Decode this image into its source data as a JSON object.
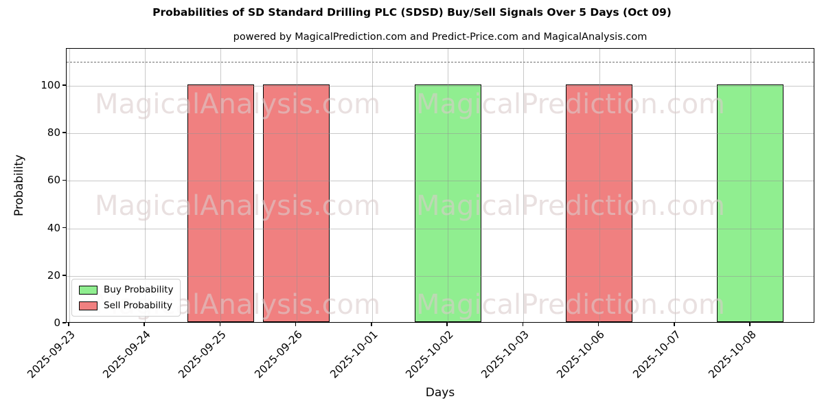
{
  "title": "Probabilities of SD Standard Drilling PLC (SDSD) Buy/Sell Signals Over 5 Days (Oct 09)",
  "subtitle": "powered by MagicalPrediction.com and Predict-Price.com and MagicalAnalysis.com",
  "watermark": {
    "left_text": "MagicalAnalysis.com",
    "right_text": "MagicalPrediction.com"
  },
  "legend": {
    "items": [
      {
        "label": "Buy Probability",
        "color": "#90ee90"
      },
      {
        "label": "Sell Probability",
        "color": "#f08080"
      }
    ]
  },
  "chart_data": {
    "type": "bar",
    "title": "Probabilities of SD Standard Drilling PLC (SDSD) Buy/Sell Signals Over 5 Days (Oct 09)",
    "xlabel": "Days",
    "ylabel": "Probability",
    "categories": [
      "2025-09-23",
      "2025-09-24",
      "2025-09-25",
      "2025-09-26",
      "2025-10-01",
      "2025-10-02",
      "2025-10-03",
      "2025-10-06",
      "2025-10-07",
      "2025-10-08"
    ],
    "series": [
      {
        "name": "Buy Probability",
        "color": "#90ee90",
        "values": [
          null,
          null,
          null,
          null,
          null,
          100,
          null,
          null,
          null,
          100
        ]
      },
      {
        "name": "Sell Probability",
        "color": "#f08080",
        "values": [
          null,
          null,
          100,
          100,
          null,
          null,
          null,
          100,
          null,
          null
        ]
      }
    ],
    "y_ticks": [
      0,
      20,
      40,
      60,
      80,
      100
    ],
    "ylim": [
      0,
      115.6
    ],
    "dashed_line_y": 110,
    "grid": true,
    "grid_color": "#919191",
    "bar_edge_color": "#000000",
    "legend_position": "lower left"
  }
}
